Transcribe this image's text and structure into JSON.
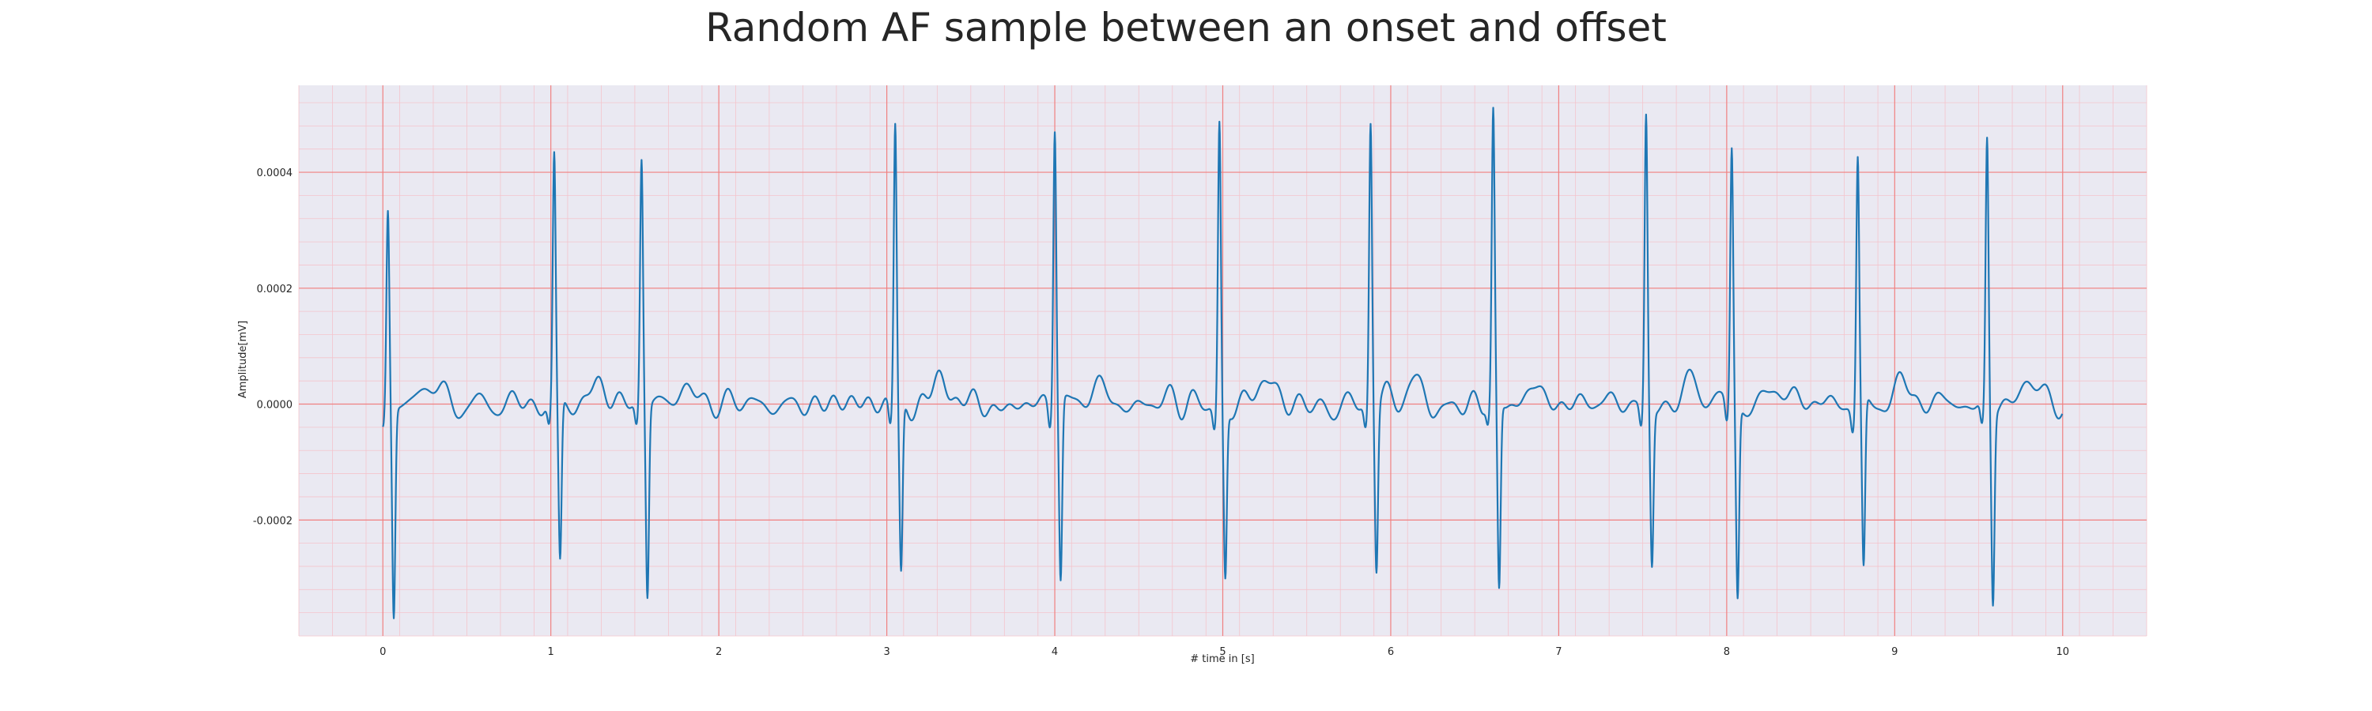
{
  "chart_data": {
    "type": "line",
    "title": "Random AF sample between an onset and offset",
    "xlabel": "# time in [s]",
    "ylabel": "Amplitude[mV]",
    "xlim": [
      -0.5,
      10.5
    ],
    "ylim": [
      -0.0004,
      0.00055
    ],
    "x_ticks": [
      0,
      1,
      2,
      3,
      4,
      5,
      6,
      7,
      8,
      9,
      10
    ],
    "x_tick_labels": [
      "0",
      "1",
      "2",
      "3",
      "4",
      "5",
      "6",
      "7",
      "8",
      "9",
      "10"
    ],
    "y_ticks": [
      -0.0002,
      0.0,
      0.0002,
      0.0004
    ],
    "y_tick_labels": [
      "-0.0002",
      "0.0000",
      "0.0002",
      "0.0004"
    ],
    "grid": true,
    "grid_major_color": "#f08080",
    "grid_minor_color": "#f4c4cc",
    "plot_background": "#eae9f2",
    "series": [
      {
        "color": "#1f77b4",
        "r_peaks": [
          {
            "t": 0.03,
            "peak": 0.00034,
            "trough": -0.00036
          },
          {
            "t": 1.02,
            "peak": 0.00042,
            "trough": -0.00028
          },
          {
            "t": 1.54,
            "peak": 0.00042,
            "trough": -0.00033
          },
          {
            "t": 3.05,
            "peak": 0.00049,
            "trough": -0.00029
          },
          {
            "t": 4.0,
            "peak": 0.00048,
            "trough": -0.00031
          },
          {
            "t": 4.98,
            "peak": 0.00049,
            "trough": -0.00029
          },
          {
            "t": 5.88,
            "peak": 0.00049,
            "trough": -0.00028
          },
          {
            "t": 6.61,
            "peak": 0.00048,
            "trough": -0.00033
          },
          {
            "t": 7.52,
            "peak": 0.0005,
            "trough": -0.00027
          },
          {
            "t": 8.03,
            "peak": 0.00044,
            "trough": -0.00033
          },
          {
            "t": 8.78,
            "peak": 0.00043,
            "trough": -0.00029
          },
          {
            "t": 9.55,
            "peak": 0.00046,
            "trough": -0.00033
          }
        ],
        "baseline_noise": 2e-05
      }
    ]
  }
}
